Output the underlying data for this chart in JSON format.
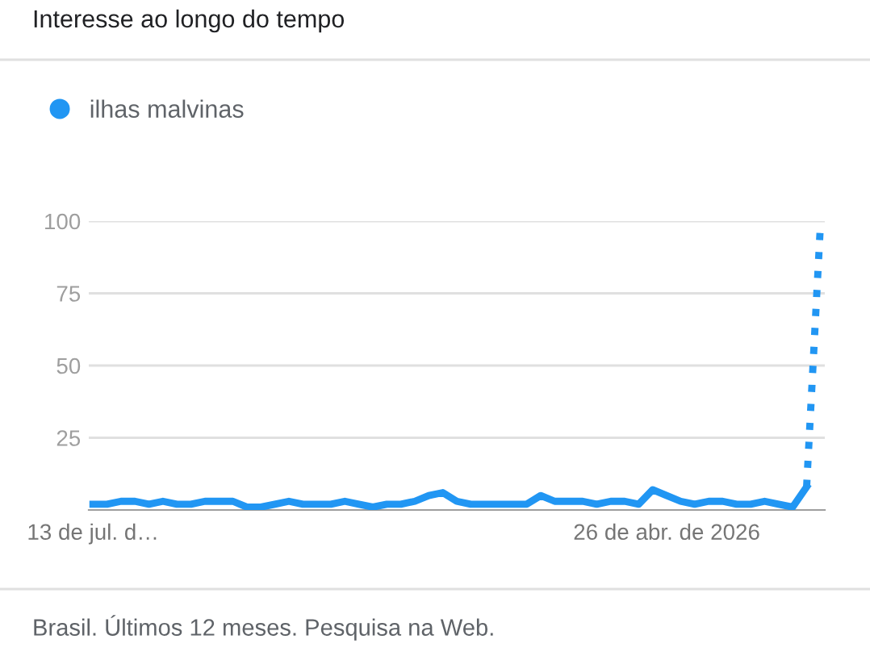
{
  "chart_data": {
    "type": "line",
    "title": "Interesse ao longo do tempo",
    "categories": [
      "13 de jul. d…",
      null,
      null,
      null,
      null,
      null,
      null,
      null,
      null,
      null,
      null,
      null,
      null,
      null,
      null,
      null,
      null,
      null,
      null,
      null,
      null,
      null,
      null,
      null,
      null,
      null,
      null,
      null,
      null,
      null,
      null,
      null,
      null,
      null,
      null,
      null,
      null,
      null,
      null,
      null,
      null,
      "26 de abr. de 2026",
      null,
      null,
      null,
      null,
      null,
      null,
      null,
      null,
      null,
      null,
      null
    ],
    "series": [
      {
        "name": "ilhas malvinas",
        "color": "#2196f3",
        "line_style": "solid",
        "values": [
          2,
          2,
          3,
          3,
          2,
          3,
          2,
          2,
          3,
          3,
          3,
          1,
          1,
          2,
          3,
          2,
          2,
          2,
          3,
          2,
          1,
          2,
          2,
          3,
          5,
          6,
          3,
          2,
          2,
          2,
          2,
          2,
          5,
          3,
          3,
          3,
          2,
          3,
          3,
          2,
          7,
          5,
          3,
          2,
          3,
          3,
          2,
          2,
          3,
          2,
          1,
          8,
          null
        ]
      },
      {
        "color": "#2196f3",
        "line_style": "dotted",
        "values": [
          null,
          null,
          null,
          null,
          null,
          null,
          null,
          null,
          null,
          null,
          null,
          null,
          null,
          null,
          null,
          null,
          null,
          null,
          null,
          null,
          null,
          null,
          null,
          null,
          null,
          null,
          null,
          null,
          null,
          null,
          null,
          null,
          null,
          null,
          null,
          null,
          null,
          null,
          null,
          null,
          null,
          null,
          null,
          null,
          null,
          null,
          null,
          null,
          null,
          null,
          null,
          8,
          100
        ]
      }
    ],
    "ylim": [
      0,
      100
    ],
    "yticks": [
      25,
      50,
      75,
      100
    ],
    "grid": "y",
    "legend": "top left",
    "annotations": [
      "Brasil. Últimos 12 meses. Pesquisa na Web."
    ]
  }
}
